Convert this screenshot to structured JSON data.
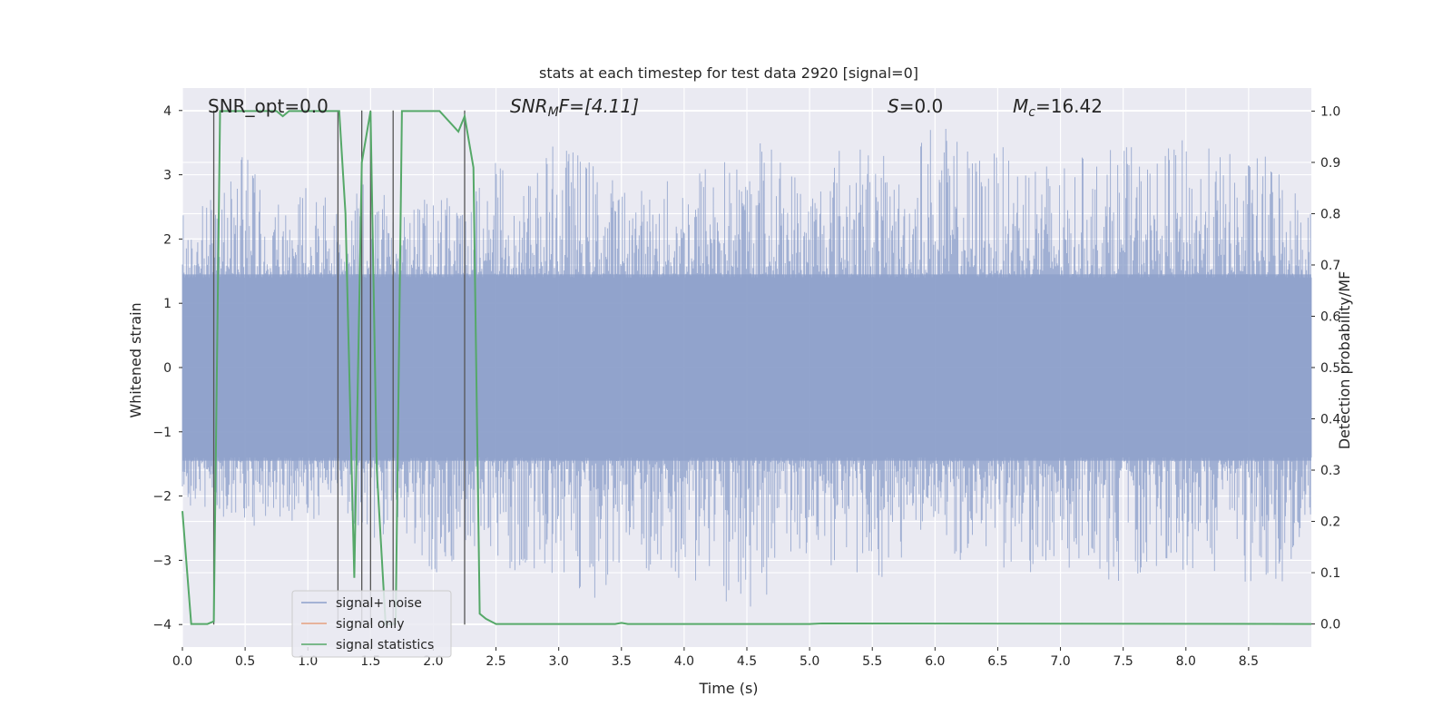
{
  "chart_data": {
    "type": "line",
    "title": "stats at each timestep for test data 2920 [signal=0]",
    "xlabel": "Time (s)",
    "ylabel": "Whitened strain",
    "y2label": "Detection probability/MF",
    "xlim": [
      0,
      9.0
    ],
    "ylim": [
      -4.35,
      4.35
    ],
    "y2lim": [
      -0.045,
      1.045
    ],
    "xticks": [
      0.0,
      0.5,
      1.0,
      1.5,
      2.0,
      2.5,
      3.0,
      3.5,
      4.0,
      4.5,
      5.0,
      5.5,
      6.0,
      6.5,
      7.0,
      7.5,
      8.0,
      8.5
    ],
    "xtick_labels": [
      "0.0",
      "0.5",
      "1.0",
      "1.5",
      "2.0",
      "2.5",
      "3.0",
      "3.5",
      "4.0",
      "4.5",
      "5.0",
      "5.5",
      "6.0",
      "6.5",
      "7.0",
      "7.5",
      "8.0",
      "8.5"
    ],
    "yticks": [
      -4,
      -3,
      -2,
      -1,
      0,
      1,
      2,
      3,
      4
    ],
    "ytick_labels": [
      "−4",
      "−3",
      "−2",
      "−1",
      "0",
      "1",
      "2",
      "3",
      "4"
    ],
    "y2ticks": [
      0.0,
      0.1,
      0.2,
      0.3,
      0.4,
      0.5,
      0.6,
      0.7,
      0.8,
      0.9,
      1.0
    ],
    "y2tick_labels": [
      "0.0",
      "0.1",
      "0.2",
      "0.3",
      "0.4",
      "0.5",
      "0.6",
      "0.7",
      "0.8",
      "0.9",
      "1.0"
    ],
    "grid": true,
    "legend_position": "bottom-left",
    "annotations": {
      "snr_opt": "SNR_opt=0.0",
      "snr_mf_main": "SNR",
      "snr_mf_sub": "M",
      "snr_mf_rest": "F=[4.11]",
      "s_main": "S",
      "s_rest": "=0.0",
      "mc_main": "M",
      "mc_sub": "c",
      "mc_rest": "=16.42"
    },
    "series": [
      {
        "name": "signal+ noise",
        "color": "#8da0cb",
        "description": "whitened strain noise, roughly between -2.6 and 2.7, peaks reaching about 4.0 and -4.0",
        "envelope_points": [
          [
            0.0,
            2.4,
            -2.2
          ],
          [
            0.25,
            2.7,
            -2.3
          ],
          [
            0.5,
            3.4,
            -2.5
          ],
          [
            0.75,
            2.6,
            -2.4
          ],
          [
            1.0,
            2.9,
            -2.5
          ],
          [
            1.25,
            2.5,
            -2.6
          ],
          [
            1.5,
            3.0,
            -2.7
          ],
          [
            1.75,
            2.4,
            -2.5
          ],
          [
            2.0,
            2.7,
            -3.4
          ],
          [
            2.25,
            2.6,
            -2.8
          ],
          [
            2.5,
            3.2,
            -3.3
          ],
          [
            2.75,
            3.0,
            -3.2
          ],
          [
            3.0,
            3.6,
            -3.2
          ],
          [
            3.25,
            3.3,
            -3.8
          ],
          [
            3.5,
            2.9,
            -3.1
          ],
          [
            3.75,
            2.8,
            -3.3
          ],
          [
            4.0,
            3.1,
            -3.4
          ],
          [
            4.25,
            3.5,
            -3.8
          ],
          [
            4.4,
            3.2,
            -4.0
          ],
          [
            4.6,
            3.7,
            -3.9
          ],
          [
            4.75,
            3.4,
            -3.0
          ],
          [
            5.0,
            3.0,
            -3.3
          ],
          [
            5.25,
            3.6,
            -3.1
          ],
          [
            5.5,
            3.5,
            -3.4
          ],
          [
            5.75,
            3.0,
            -3.0
          ],
          [
            5.93,
            4.0,
            -2.7
          ],
          [
            6.25,
            3.5,
            -3.1
          ],
          [
            6.5,
            3.4,
            -3.2
          ],
          [
            6.75,
            3.6,
            -3.2
          ],
          [
            7.0,
            3.1,
            -3.1
          ],
          [
            7.25,
            3.4,
            -3.3
          ],
          [
            7.5,
            3.5,
            -3.4
          ],
          [
            7.75,
            3.3,
            -3.1
          ],
          [
            8.0,
            3.6,
            -3.2
          ],
          [
            8.25,
            3.4,
            -3.2
          ],
          [
            8.5,
            3.3,
            -3.4
          ],
          [
            8.75,
            3.4,
            -3.4
          ],
          [
            9.0,
            2.5,
            -2.6
          ]
        ]
      },
      {
        "name": "signal only",
        "color": "#e5a07e",
        "x": [],
        "y": []
      },
      {
        "name": "signal statistics",
        "color": "#55a868",
        "axis": "right",
        "x": [
          0.0,
          0.07,
          0.2,
          0.25,
          0.3,
          0.75,
          0.8,
          0.85,
          1.25,
          1.3,
          1.37,
          1.43,
          1.5,
          1.55,
          1.62,
          1.7,
          1.75,
          1.85,
          2.05,
          2.2,
          2.25,
          2.32,
          2.37,
          2.42,
          2.5,
          3.45,
          3.5,
          3.55,
          5.0,
          5.1,
          9.0
        ],
        "y": [
          0.22,
          0.0,
          0.0,
          0.005,
          1.0,
          1.0,
          0.99,
          1.0,
          1.0,
          0.8,
          0.09,
          0.9,
          1.0,
          0.3,
          0.0,
          0.0,
          1.0,
          1.0,
          1.0,
          0.96,
          0.99,
          0.89,
          0.02,
          0.01,
          0.0,
          0.0,
          0.002,
          0.0,
          0.0,
          0.001,
          0.0
        ]
      }
    ],
    "vertical_markers": [
      0.25,
      1.24,
      1.43,
      1.5,
      1.68,
      2.25
    ]
  }
}
